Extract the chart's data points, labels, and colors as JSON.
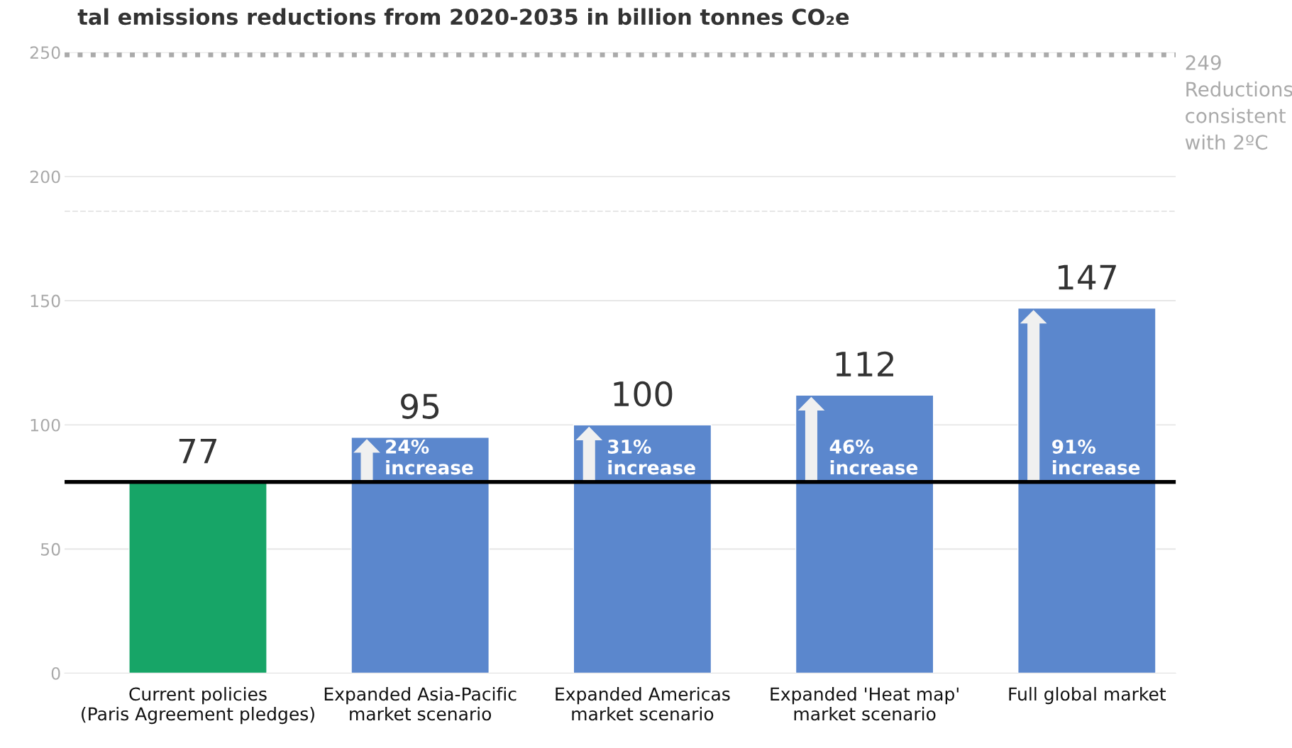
{
  "chart_data": {
    "type": "bar",
    "title": "tal emissions reductions from 2020-2035 in billion tonnes CO₂e",
    "categories": [
      "Current policies\n(Paris Agreement pledges)",
      "Expanded Asia-Pacific\nmarket scenario",
      "Expanded Americas\nmarket scenario",
      "Expanded 'Heat map'\nmarket scenario",
      "Full global market"
    ],
    "values": [
      77,
      95,
      100,
      112,
      147
    ],
    "colors": [
      "#17a567",
      "#5b87cd",
      "#5b87cd",
      "#5b87cd",
      "#5b87cd"
    ],
    "data_labels": true,
    "ylim": [
      0,
      250
    ],
    "yticks": [
      0,
      50,
      100,
      150,
      200,
      250
    ],
    "grid": "y",
    "legend": false,
    "ref_lines": [
      {
        "axis": "y",
        "value": 77,
        "label": null,
        "color": "#000000",
        "line_style": "solid"
      },
      {
        "axis": "y",
        "value": 249,
        "label": "249\nReductions\nconsistent\nwith 2ºC",
        "color": "#aaaaaa",
        "line_style": "dotted"
      },
      {
        "axis": "y",
        "value": 186,
        "label": null,
        "color": "#e6e6e6",
        "line_style": "dashed"
      }
    ],
    "annotations": [
      "24%\nincrease",
      "31%\nincrease",
      "46%\nincrease",
      "91%\nincrease"
    ]
  }
}
